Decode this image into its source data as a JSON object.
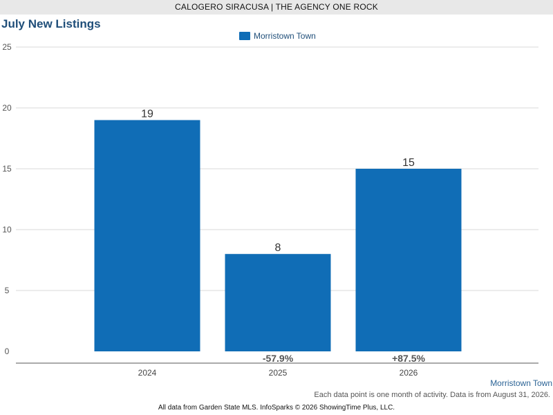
{
  "header": {
    "agent": "CALOGERO SIRACUSA | THE AGENCY ONE ROCK"
  },
  "colors": {
    "bar": "#106db6",
    "title": "#1f4e79",
    "grid": "#d9d9d9"
  },
  "chart_data": {
    "type": "bar",
    "title": "July New Listings",
    "categories": [
      "2024",
      "2025",
      "2026"
    ],
    "series": [
      {
        "name": "Morristown Town",
        "values": [
          19,
          8,
          15
        ]
      }
    ],
    "data_labels": [
      "19",
      "8",
      "15"
    ],
    "change_labels": [
      "",
      "-57.9%",
      "+87.5%"
    ],
    "y_ticks": [
      0,
      5,
      10,
      15,
      20,
      25
    ],
    "ylim": [
      0,
      25
    ],
    "xlabel": "",
    "ylabel": "",
    "grid": true,
    "legend_position": "top-center"
  },
  "footer": {
    "region": "Morristown Town",
    "note": "Each data point is one month of activity. Data is from August 31, 2026.",
    "source": "All data from Garden State MLS. InfoSparks © 2026 ShowingTime Plus, LLC."
  }
}
